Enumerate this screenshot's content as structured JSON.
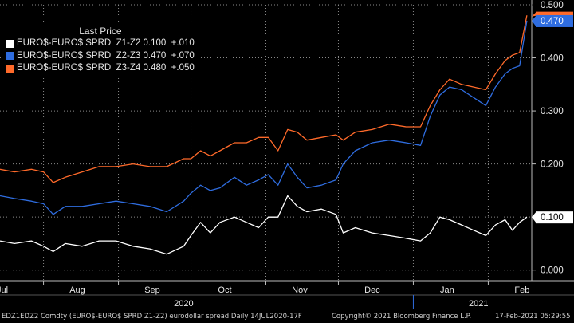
{
  "chart_data": {
    "type": "line",
    "legend_title": "Last Price",
    "legend_placement": "top-left",
    "grid": true,
    "ylim": [
      -0.02,
      0.5
    ],
    "y_ticks": [
      "0.000",
      "0.100",
      "0.200",
      "0.300",
      "0.400",
      "0.500"
    ],
    "y_tick_values": [
      0,
      0.1,
      0.2,
      0.3,
      0.4,
      0.5
    ],
    "x_month_labels": [
      "Jul",
      "Aug",
      "Sep",
      "Oct",
      "Nov",
      "Dec",
      "Jan",
      "Feb"
    ],
    "x_month_positions": [
      "2020-07-15",
      "2020-08-15",
      "2020-09-15",
      "2020-10-15",
      "2020-11-15",
      "2020-12-15",
      "2021-01-15",
      "2021-02-15"
    ],
    "x_year_labels": [
      "2020",
      "2021"
    ],
    "x_year_positions": [
      "2020-09-28",
      "2021-01-28"
    ],
    "xlim": [
      "2020-07-14",
      "2021-02-19"
    ],
    "series": [
      {
        "name": "EURO$-EURO$ SPRD  Z1-Z2",
        "last": "0.100",
        "change": "+.010",
        "color": "#ffffff",
        "points": [
          [
            "2020-07-14",
            0.055
          ],
          [
            "2020-07-20",
            0.05
          ],
          [
            "2020-07-27",
            0.055
          ],
          [
            "2020-08-01",
            0.045
          ],
          [
            "2020-08-05",
            0.035
          ],
          [
            "2020-08-10",
            0.05
          ],
          [
            "2020-08-17",
            0.045
          ],
          [
            "2020-08-24",
            0.055
          ],
          [
            "2020-08-31",
            0.055
          ],
          [
            "2020-09-07",
            0.045
          ],
          [
            "2020-09-14",
            0.04
          ],
          [
            "2020-09-21",
            0.03
          ],
          [
            "2020-09-28",
            0.045
          ],
          [
            "2020-10-01",
            0.065
          ],
          [
            "2020-10-05",
            0.09
          ],
          [
            "2020-10-09",
            0.07
          ],
          [
            "2020-10-13",
            0.09
          ],
          [
            "2020-10-19",
            0.1
          ],
          [
            "2020-10-24",
            0.09
          ],
          [
            "2020-10-29",
            0.08
          ],
          [
            "2020-11-02",
            0.1
          ],
          [
            "2020-11-06",
            0.1
          ],
          [
            "2020-11-10",
            0.14
          ],
          [
            "2020-11-14",
            0.12
          ],
          [
            "2020-11-18",
            0.11
          ],
          [
            "2020-11-24",
            0.115
          ],
          [
            "2020-11-30",
            0.105
          ],
          [
            "2020-12-03",
            0.07
          ],
          [
            "2020-12-08",
            0.08
          ],
          [
            "2020-12-15",
            0.07
          ],
          [
            "2020-12-22",
            0.065
          ],
          [
            "2020-12-29",
            0.06
          ],
          [
            "2021-01-04",
            0.055
          ],
          [
            "2021-01-08",
            0.07
          ],
          [
            "2021-01-12",
            0.1
          ],
          [
            "2021-01-16",
            0.095
          ],
          [
            "2021-01-21",
            0.085
          ],
          [
            "2021-01-26",
            0.075
          ],
          [
            "2021-01-31",
            0.065
          ],
          [
            "2021-02-04",
            0.085
          ],
          [
            "2021-02-08",
            0.095
          ],
          [
            "2021-02-11",
            0.075
          ],
          [
            "2021-02-14",
            0.09
          ],
          [
            "2021-02-17",
            0.1
          ]
        ]
      },
      {
        "name": "EURO$-EURO$ SPRD  Z2-Z3",
        "last": "0.470",
        "change": "+.070",
        "color": "#2f6de0",
        "points": [
          [
            "2020-07-14",
            0.14
          ],
          [
            "2020-07-20",
            0.135
          ],
          [
            "2020-07-27",
            0.13
          ],
          [
            "2020-08-01",
            0.125
          ],
          [
            "2020-08-05",
            0.105
          ],
          [
            "2020-08-10",
            0.12
          ],
          [
            "2020-08-17",
            0.12
          ],
          [
            "2020-08-24",
            0.125
          ],
          [
            "2020-08-31",
            0.13
          ],
          [
            "2020-09-07",
            0.125
          ],
          [
            "2020-09-14",
            0.12
          ],
          [
            "2020-09-21",
            0.11
          ],
          [
            "2020-09-28",
            0.13
          ],
          [
            "2020-10-01",
            0.145
          ],
          [
            "2020-10-05",
            0.16
          ],
          [
            "2020-10-09",
            0.15
          ],
          [
            "2020-10-13",
            0.155
          ],
          [
            "2020-10-19",
            0.175
          ],
          [
            "2020-10-24",
            0.16
          ],
          [
            "2020-10-29",
            0.17
          ],
          [
            "2020-11-02",
            0.18
          ],
          [
            "2020-11-06",
            0.16
          ],
          [
            "2020-11-10",
            0.2
          ],
          [
            "2020-11-14",
            0.175
          ],
          [
            "2020-11-18",
            0.155
          ],
          [
            "2020-11-24",
            0.16
          ],
          [
            "2020-11-30",
            0.17
          ],
          [
            "2020-12-03",
            0.2
          ],
          [
            "2020-12-08",
            0.225
          ],
          [
            "2020-12-15",
            0.24
          ],
          [
            "2020-12-22",
            0.245
          ],
          [
            "2020-12-29",
            0.24
          ],
          [
            "2021-01-04",
            0.235
          ],
          [
            "2021-01-08",
            0.29
          ],
          [
            "2021-01-12",
            0.33
          ],
          [
            "2021-01-16",
            0.345
          ],
          [
            "2021-01-21",
            0.34
          ],
          [
            "2021-01-26",
            0.325
          ],
          [
            "2021-01-31",
            0.31
          ],
          [
            "2021-02-04",
            0.345
          ],
          [
            "2021-02-08",
            0.37
          ],
          [
            "2021-02-11",
            0.38
          ],
          [
            "2021-02-14",
            0.385
          ],
          [
            "2021-02-17",
            0.47
          ]
        ]
      },
      {
        "name": "EURO$-EURO$ SPRD  Z3-Z4",
        "last": "0.480",
        "change": "+.050",
        "color": "#ff6a2a",
        "points": [
          [
            "2020-07-14",
            0.19
          ],
          [
            "2020-07-20",
            0.185
          ],
          [
            "2020-07-27",
            0.19
          ],
          [
            "2020-08-01",
            0.185
          ],
          [
            "2020-08-05",
            0.165
          ],
          [
            "2020-08-10",
            0.175
          ],
          [
            "2020-08-17",
            0.185
          ],
          [
            "2020-08-24",
            0.195
          ],
          [
            "2020-08-31",
            0.195
          ],
          [
            "2020-09-07",
            0.2
          ],
          [
            "2020-09-14",
            0.195
          ],
          [
            "2020-09-21",
            0.195
          ],
          [
            "2020-09-28",
            0.21
          ],
          [
            "2020-10-01",
            0.21
          ],
          [
            "2020-10-05",
            0.225
          ],
          [
            "2020-10-09",
            0.215
          ],
          [
            "2020-10-13",
            0.225
          ],
          [
            "2020-10-19",
            0.24
          ],
          [
            "2020-10-24",
            0.24
          ],
          [
            "2020-10-29",
            0.25
          ],
          [
            "2020-11-02",
            0.25
          ],
          [
            "2020-11-06",
            0.225
          ],
          [
            "2020-11-10",
            0.265
          ],
          [
            "2020-11-14",
            0.26
          ],
          [
            "2020-11-18",
            0.245
          ],
          [
            "2020-11-24",
            0.25
          ],
          [
            "2020-11-30",
            0.255
          ],
          [
            "2020-12-03",
            0.245
          ],
          [
            "2020-12-08",
            0.26
          ],
          [
            "2020-12-15",
            0.265
          ],
          [
            "2020-12-22",
            0.275
          ],
          [
            "2020-12-29",
            0.27
          ],
          [
            "2021-01-04",
            0.27
          ],
          [
            "2021-01-08",
            0.31
          ],
          [
            "2021-01-12",
            0.34
          ],
          [
            "2021-01-16",
            0.36
          ],
          [
            "2021-01-21",
            0.35
          ],
          [
            "2021-01-26",
            0.345
          ],
          [
            "2021-01-31",
            0.34
          ],
          [
            "2021-02-04",
            0.37
          ],
          [
            "2021-02-08",
            0.395
          ],
          [
            "2021-02-11",
            0.405
          ],
          [
            "2021-02-14",
            0.41
          ],
          [
            "2021-02-17",
            0.48
          ]
        ]
      }
    ],
    "last_value_markers": [
      {
        "value": 0.5,
        "label": "0.500",
        "bg": "#000000",
        "fg": "#e6e6e6"
      },
      {
        "value": 0.478,
        "label": "",
        "bg": "#ff6a2a",
        "fg": "#ffffff"
      },
      {
        "value": 0.47,
        "label": "0.470",
        "bg": "#2f6de0",
        "fg": "#ffffff"
      },
      {
        "value": 0.1,
        "label": "0.100",
        "bg": "#ffffff",
        "fg": "#000000"
      }
    ]
  },
  "footer": {
    "left": "EDZ1EDZ2 Comdty (EURO$-EURO$ SPRD  Z1-Z2) eurodollar spread  Daily 14JUL2020-17F",
    "copyright": "Copyright© 2021 Bloomberg Finance L.P.",
    "timestamp": "17-Feb-2021 05:29:55"
  }
}
